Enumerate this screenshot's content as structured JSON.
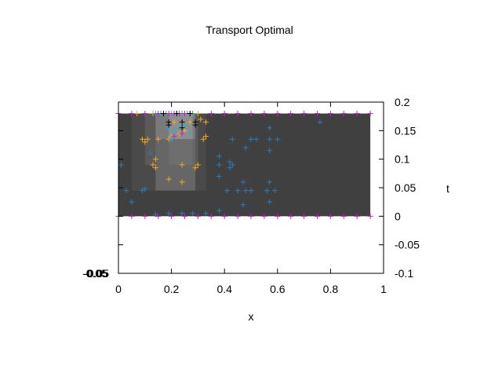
{
  "chart_data": {
    "type": "heatmap",
    "title": "Transport Optimal",
    "xlabel": "x",
    "ylabel": "t",
    "xlim": [
      0,
      1
    ],
    "ylim": [
      -0.1,
      0.2
    ],
    "x_ticks": [
      "0",
      "0.2",
      "0.4",
      "0.6",
      "0.8",
      "1"
    ],
    "y_ticks": [
      "-0.1",
      "-0.05",
      "0",
      "0.05",
      "0.1",
      "0.15",
      "0.2"
    ],
    "left_overlapping_label": "-0.05",
    "grid": false,
    "legend": false,
    "heatmap": {
      "x_range": [
        0,
        0.95
      ],
      "t_range": [
        0,
        0.18
      ],
      "base_color": "#404040",
      "cells": [
        {
          "x0": 0.05,
          "x1": 0.33,
          "t0": 0.045,
          "t1": 0.18,
          "color": "#4a4a4a"
        },
        {
          "x0": 0.1,
          "x1": 0.3,
          "t0": 0.09,
          "t1": 0.18,
          "color": "#5a5a5a"
        },
        {
          "x0": 0.14,
          "x1": 0.29,
          "t0": 0.045,
          "t1": 0.135,
          "color": "#666666"
        },
        {
          "x0": 0.14,
          "x1": 0.29,
          "t0": 0.135,
          "t1": 0.18,
          "color": "#7a7a7a"
        },
        {
          "x0": 0.19,
          "x1": 0.28,
          "t0": 0.135,
          "t1": 0.18,
          "color": "#8e8e8e"
        },
        {
          "x0": 0.19,
          "x1": 0.28,
          "t0": 0.09,
          "t1": 0.135,
          "color": "#6e6e6e"
        }
      ]
    },
    "series": [
      {
        "color": "#2b7bba",
        "points": [
          [
            0.01,
            0.09
          ],
          [
            0.03,
            0.045
          ],
          [
            0.05,
            0.025
          ],
          [
            0.09,
            0.045
          ],
          [
            0.1,
            0.048
          ],
          [
            0.12,
            0.11
          ],
          [
            0.14,
            0.003
          ],
          [
            0.19,
            0.005
          ],
          [
            0.24,
            0.005
          ],
          [
            0.28,
            0.005
          ],
          [
            0.33,
            0.005
          ],
          [
            0.38,
            0.01
          ],
          [
            0.38,
            0.07
          ],
          [
            0.38,
            0.09
          ],
          [
            0.38,
            0.105
          ],
          [
            0.41,
            0.045
          ],
          [
            0.42,
            0.085
          ],
          [
            0.42,
            0.095
          ],
          [
            0.43,
            0.09
          ],
          [
            0.43,
            0.135
          ],
          [
            0.45,
            0.045
          ],
          [
            0.47,
            0.02
          ],
          [
            0.47,
            0.06
          ],
          [
            0.48,
            0.045
          ],
          [
            0.48,
            0.12
          ],
          [
            0.5,
            0.045
          ],
          [
            0.5,
            0.135
          ],
          [
            0.52,
            0.135
          ],
          [
            0.56,
            0.045
          ],
          [
            0.57,
            0.025
          ],
          [
            0.57,
            0.06
          ],
          [
            0.57,
            0.115
          ],
          [
            0.57,
            0.135
          ],
          [
            0.57,
            0.155
          ],
          [
            0.59,
            0.045
          ],
          [
            0.6,
            0.135
          ],
          [
            0.76,
            0.165
          ]
        ]
      },
      {
        "color": "#f4a922",
        "points": [
          [
            0.09,
            0.135
          ],
          [
            0.1,
            0.13
          ],
          [
            0.11,
            0.135
          ],
          [
            0.13,
            0.09
          ],
          [
            0.14,
            0.085
          ],
          [
            0.14,
            0.1
          ],
          [
            0.15,
            0.135
          ],
          [
            0.19,
            0.065
          ],
          [
            0.19,
            0.135
          ],
          [
            0.2,
            0.14
          ],
          [
            0.24,
            0.06
          ],
          [
            0.24,
            0.09
          ],
          [
            0.29,
            0.085
          ],
          [
            0.3,
            0.09
          ],
          [
            0.32,
            0.135
          ],
          [
            0.33,
            0.14
          ],
          [
            0.33,
            0.165
          ],
          [
            0.31,
            0.17
          ],
          [
            0.07,
            0.18
          ],
          [
            0.13,
            0.18
          ],
          [
            0.16,
            0.18
          ],
          [
            0.22,
            0.18
          ],
          [
            0.26,
            0.18
          ],
          [
            0.28,
            0.18
          ],
          [
            0.3,
            0.18
          ],
          [
            0.21,
            0.165
          ],
          [
            0.27,
            0.165
          ],
          [
            0.25,
            0.15
          ],
          [
            0.23,
            0.145
          ]
        ]
      },
      {
        "color": "#19b6c0",
        "points": [
          [
            0.14,
            0.18
          ],
          [
            0.16,
            0.18
          ],
          [
            0.18,
            0.18
          ],
          [
            0.2,
            0.18
          ],
          [
            0.22,
            0.18
          ],
          [
            0.24,
            0.18
          ],
          [
            0.26,
            0.18
          ],
          [
            0.28,
            0.18
          ],
          [
            0.19,
            0.155
          ],
          [
            0.21,
            0.15
          ],
          [
            0.23,
            0.155
          ],
          [
            0.25,
            0.16
          ],
          [
            0.27,
            0.145
          ],
          [
            0.2,
            0.135
          ]
        ]
      },
      {
        "color": "#c21ec4",
        "points": [
          [
            0.15,
            0.18
          ],
          [
            0.17,
            0.18
          ],
          [
            0.19,
            0.18
          ],
          [
            0.21,
            0.18
          ],
          [
            0.23,
            0.18
          ],
          [
            0.25,
            0.18
          ],
          [
            0.27,
            0.18
          ],
          [
            0.24,
            0.145
          ],
          [
            0.21,
            0.14
          ],
          [
            0.0,
            0.18
          ],
          [
            0.05,
            0.18
          ],
          [
            0.1,
            0.18
          ],
          [
            0.35,
            0.18
          ],
          [
            0.4,
            0.18
          ],
          [
            0.45,
            0.18
          ],
          [
            0.5,
            0.18
          ],
          [
            0.55,
            0.18
          ],
          [
            0.6,
            0.18
          ],
          [
            0.65,
            0.18
          ],
          [
            0.7,
            0.18
          ],
          [
            0.75,
            0.18
          ],
          [
            0.8,
            0.18
          ],
          [
            0.85,
            0.18
          ],
          [
            0.9,
            0.18
          ],
          [
            0.95,
            0.18
          ],
          [
            0.0,
            0.0
          ],
          [
            0.05,
            0.0
          ],
          [
            0.1,
            0.0
          ],
          [
            0.15,
            0.0
          ],
          [
            0.2,
            0.0
          ],
          [
            0.25,
            0.0
          ],
          [
            0.3,
            0.0
          ],
          [
            0.35,
            0.0
          ],
          [
            0.4,
            0.0
          ],
          [
            0.45,
            0.0
          ],
          [
            0.5,
            0.0
          ],
          [
            0.55,
            0.0
          ],
          [
            0.6,
            0.0
          ],
          [
            0.65,
            0.0
          ],
          [
            0.7,
            0.0
          ],
          [
            0.75,
            0.0
          ],
          [
            0.8,
            0.0
          ],
          [
            0.85,
            0.0
          ],
          [
            0.9,
            0.0
          ],
          [
            0.95,
            0.0
          ]
        ]
      },
      {
        "color": "#000000",
        "points": [
          [
            0.19,
            0.165
          ],
          [
            0.19,
            0.16
          ],
          [
            0.24,
            0.165
          ],
          [
            0.24,
            0.155
          ],
          [
            0.29,
            0.165
          ],
          [
            0.29,
            0.16
          ],
          [
            0.17,
            0.18
          ],
          [
            0.22,
            0.18
          ],
          [
            0.27,
            0.18
          ]
        ]
      }
    ]
  }
}
